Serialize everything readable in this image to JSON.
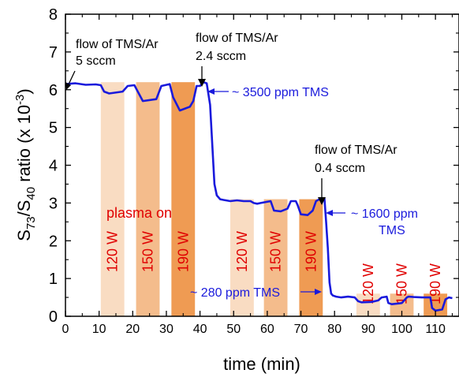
{
  "chart_data": {
    "type": "line",
    "xlabel": "time (min)",
    "ylabel_main": "S",
    "ylabel_sub1": "73",
    "ylabel_mid": "/S",
    "ylabel_sub2": "40",
    "ylabel_tail": " ratio (x 10",
    "ylabel_exp": "-3",
    "ylabel_close": ")",
    "xlim": [
      0,
      117
    ],
    "ylim": [
      0,
      8
    ],
    "x_ticks": [
      "0",
      "10",
      "20",
      "30",
      "40",
      "50",
      "60",
      "70",
      "80",
      "90",
      "100",
      "110"
    ],
    "y_ticks": [
      "0",
      "1",
      "2",
      "3",
      "4",
      "5",
      "6",
      "7",
      "8"
    ],
    "series": [
      {
        "color": "#1a1adc",
        "x": [
          0,
          3,
          6,
          9,
          10.5,
          11.5,
          13,
          17,
          18.5,
          20.5,
          21.5,
          23,
          27,
          28.5,
          31,
          32,
          34,
          37,
          38,
          39,
          40,
          41,
          42,
          43,
          44.3,
          45,
          46,
          47,
          49,
          51,
          53,
          55,
          56,
          57,
          58,
          61,
          62,
          64,
          66,
          67,
          68.5,
          69,
          70,
          72,
          73.5,
          74.5,
          75.5,
          77,
          77.5,
          78,
          78.5,
          79,
          79.5,
          80.5,
          82,
          84,
          86,
          87,
          88,
          91,
          93,
          94,
          95.5,
          96,
          97,
          100,
          101.5,
          102,
          103.5,
          106,
          107,
          108.5,
          109,
          110,
          112,
          113,
          114,
          115
        ],
        "y": [
          6.15,
          6.17,
          6.13,
          6.14,
          6.12,
          5.95,
          5.9,
          5.95,
          6.1,
          6.12,
          5.95,
          5.7,
          5.75,
          6.1,
          6.15,
          5.8,
          5.45,
          5.55,
          5.7,
          6.1,
          6.1,
          6.2,
          6.17,
          5.6,
          3.5,
          3.2,
          3.1,
          3.08,
          3.05,
          3.07,
          3.05,
          3.05,
          3.0,
          2.98,
          3.0,
          3.05,
          2.8,
          2.78,
          2.85,
          3.05,
          3.05,
          2.95,
          2.7,
          2.68,
          2.8,
          3.05,
          3.1,
          3.12,
          2.5,
          1.8,
          0.9,
          0.6,
          0.55,
          0.52,
          0.5,
          0.52,
          0.5,
          0.4,
          0.37,
          0.38,
          0.42,
          0.5,
          0.52,
          0.35,
          0.32,
          0.35,
          0.5,
          0.52,
          0.51,
          0.5,
          0.5,
          0.5,
          0.22,
          0.15,
          0.18,
          0.45,
          0.5,
          0.48
        ]
      }
    ],
    "bands": [
      {
        "x0": 10.5,
        "x1": 17.5,
        "label": "120 W",
        "color": "#f9dcc2"
      },
      {
        "x0": 21.0,
        "x1": 28.0,
        "label": "150 W",
        "color": "#f4bc8c"
      },
      {
        "x0": 31.5,
        "x1": 38.5,
        "label": "190 W",
        "color": "#ef9b53"
      },
      {
        "x0": 49.0,
        "x1": 56.0,
        "label": "120 W",
        "color": "#f9dcc2"
      },
      {
        "x0": 59.0,
        "x1": 66.0,
        "label": "150 W",
        "color": "#f4bc8c"
      },
      {
        "x0": 69.5,
        "x1": 76.5,
        "label": "190 W",
        "color": "#ef9b53"
      },
      {
        "x0": 86.5,
        "x1": 93.5,
        "label": "120 W",
        "color": "#f9dcc2"
      },
      {
        "x0": 96.5,
        "x1": 103.5,
        "label": "150 W",
        "color": "#f4bc8c"
      },
      {
        "x0": 106.5,
        "x1": 113.5,
        "label": "190 W",
        "color": "#ef9b53"
      }
    ],
    "band_tops": [
      6.2,
      3.1,
      0.6
    ],
    "annotations": {
      "flow1_line1": "flow of TMS/Ar",
      "flow1_line2": "5 sccm",
      "flow2_line1": "flow of TMS/Ar",
      "flow2_line2": "2.4 sccm",
      "flow3_line1": "flow of TMS/Ar",
      "flow3_line2": "0.4 sccm",
      "ppm1": "~ 3500 ppm TMS",
      "ppm2_line1": "~ 1600 ppm",
      "ppm2_line2": "TMS",
      "ppm3": "~ 280 ppm TMS",
      "plasma_on": "plasma on"
    },
    "colors": {
      "series": "#1a1adc",
      "annotation_blue": "#1a1adc",
      "band_label": "#e00000"
    }
  }
}
